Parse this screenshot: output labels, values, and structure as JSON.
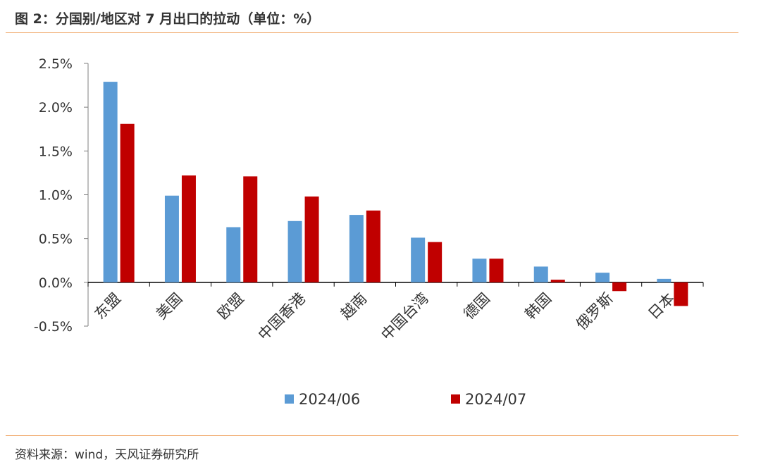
{
  "figure": {
    "title": "图 2：分国别/地区对 7 月出口的拉动（单位：%）",
    "source": "资料来源：wind，天风证券研究所"
  },
  "chart_data": {
    "type": "bar",
    "categories": [
      "东盟",
      "美国",
      "欧盟",
      "中国香港",
      "越南",
      "中国台湾",
      "德国",
      "韩国",
      "俄罗斯",
      "日本"
    ],
    "series": [
      {
        "name": "2024/06",
        "color": "#5b9bd5",
        "values": [
          2.29,
          0.99,
          0.63,
          0.7,
          0.77,
          0.51,
          0.27,
          0.18,
          0.11,
          0.04
        ]
      },
      {
        "name": "2024/07",
        "color": "#c00000",
        "values": [
          1.81,
          1.22,
          1.21,
          0.98,
          0.82,
          0.46,
          0.27,
          0.03,
          -0.1,
          -0.27
        ]
      }
    ],
    "ylim": [
      -0.5,
      2.5
    ],
    "yticks": [
      2.5,
      2.0,
      1.5,
      1.0,
      0.5,
      0.0,
      -0.5
    ],
    "ytick_labels": [
      "2.5%",
      "2.0%",
      "1.5%",
      "1.0%",
      "0.5%",
      "0.0%",
      "-0.5%"
    ],
    "xlabel": "",
    "ylabel": "",
    "grid": false,
    "legend_position": "bottom"
  }
}
